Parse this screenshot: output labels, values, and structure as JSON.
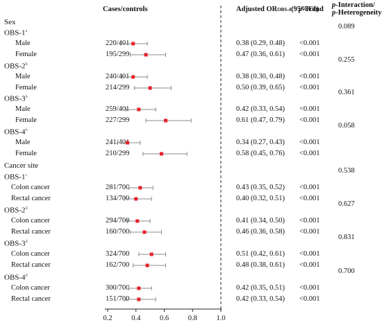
{
  "header": {
    "cases_controls": "Cases/controls",
    "or_prefix": "Adjusted OR",
    "or_sub": "OBS-4",
    "or_suffix": "(95%CI)",
    "p_trend_italic": "p",
    "p_trend_text": "-Trend",
    "p_interaction_line1_italic": "p",
    "p_interaction_line1": "-Interaction/",
    "p_interaction_line2_italic": "p",
    "p_interaction_line2": "-Heterogeneity"
  },
  "sections": [
    {
      "title": "Sex"
    },
    {
      "title": "Cancer site"
    }
  ],
  "chart_data": {
    "type": "forest",
    "xlim": [
      0.2,
      1.0
    ],
    "xticks": [
      0.2,
      0.4,
      0.6,
      0.8,
      1.0
    ],
    "xtick_labels": [
      "0.2",
      "0.4",
      "0.6",
      "0.8",
      "1.0"
    ],
    "reference_line": 1.0,
    "groups": [
      {
        "label": "OBS-1",
        "sup": "a",
        "p_interaction": "0.089",
        "rows": [
          {
            "label": "Male",
            "cases": "220/401",
            "or": 0.38,
            "lo": 0.29,
            "hi": 0.48,
            "or_text": "0.38 (0.29, 0.48)",
            "p_trend": "<0.001"
          },
          {
            "label": "Female",
            "cases": "195/299",
            "or": 0.47,
            "lo": 0.36,
            "hi": 0.61,
            "or_text": "0.47 (0.36, 0.61)",
            "p_trend": "<0.001"
          }
        ]
      },
      {
        "label": "OBS-2",
        "sup": "b",
        "p_interaction": "0.255",
        "rows": [
          {
            "label": "Male",
            "cases": "240/401",
            "or": 0.38,
            "lo": 0.3,
            "hi": 0.48,
            "or_text": "0.38 (0.30, 0.48)",
            "p_trend": "<0.001"
          },
          {
            "label": "Female",
            "cases": "214/299",
            "or": 0.5,
            "lo": 0.39,
            "hi": 0.65,
            "or_text": "0.50 (0.39, 0.65)",
            "p_trend": "<0.001"
          }
        ]
      },
      {
        "label": "OBS-3",
        "sup": "b",
        "p_interaction": "0.361",
        "rows": [
          {
            "label": "Male",
            "cases": "259/401",
            "or": 0.42,
            "lo": 0.33,
            "hi": 0.54,
            "or_text": "0.42 (0.33, 0.54)",
            "p_trend": "<0.001"
          },
          {
            "label": "Female",
            "cases": "227/299",
            "or": 0.61,
            "lo": 0.47,
            "hi": 0.79,
            "or_text": "0.61 (0.47, 0.79)",
            "p_trend": "<0.001"
          }
        ]
      },
      {
        "label": "OBS-4",
        "sup": "b",
        "p_interaction": "0.058",
        "rows": [
          {
            "label": "Male",
            "cases": "241/401",
            "or": 0.34,
            "lo": 0.27,
            "hi": 0.43,
            "or_text": "0.34 (0.27, 0.43)",
            "p_trend": "<0.001"
          },
          {
            "label": "Female",
            "cases": "210/299",
            "or": 0.58,
            "lo": 0.45,
            "hi": 0.76,
            "or_text": "0.58 (0.45, 0.76)",
            "p_trend": "<0.001"
          }
        ]
      },
      {
        "label": "OBS-1",
        "sup": "c",
        "p_interaction": "0.538",
        "rows": [
          {
            "label": "Colon cancer",
            "cases": "281/700",
            "or": 0.43,
            "lo": 0.35,
            "hi": 0.52,
            "or_text": "0.43 (0.35, 0.52)",
            "p_trend": "<0.001"
          },
          {
            "label": "Rectal cancer",
            "cases": "134/700",
            "or": 0.4,
            "lo": 0.32,
            "hi": 0.51,
            "or_text": "0.40 (0.32, 0.51)",
            "p_trend": "<0.001"
          }
        ]
      },
      {
        "label": "OBS-2",
        "sup": "d",
        "p_interaction": "0.627",
        "rows": [
          {
            "label": "Colon cancer",
            "cases": "294/700",
            "or": 0.41,
            "lo": 0.34,
            "hi": 0.5,
            "or_text": "0.41 (0.34, 0.50)",
            "p_trend": "<0.001"
          },
          {
            "label": "Rectal cancer",
            "cases": "160/700",
            "or": 0.46,
            "lo": 0.36,
            "hi": 0.58,
            "or_text": "0.46 (0.36, 0.58)",
            "p_trend": "<0.001"
          }
        ]
      },
      {
        "label": "OBS-3",
        "sup": "d",
        "p_interaction": "0.831",
        "rows": [
          {
            "label": "Colon cancer",
            "cases": "324/700",
            "or": 0.51,
            "lo": 0.42,
            "hi": 0.61,
            "or_text": "0.51 (0.42, 0.61)",
            "p_trend": "<0.001"
          },
          {
            "label": "Rectal cancer",
            "cases": "162/700",
            "or": 0.48,
            "lo": 0.38,
            "hi": 0.61,
            "or_text": "0.48 (0.38, 0.61)",
            "p_trend": "<0.001"
          }
        ]
      },
      {
        "label": "OBS-4",
        "sup": "d",
        "p_interaction": "0.700",
        "rows": [
          {
            "label": "Colon cancer",
            "cases": "300/700",
            "or": 0.42,
            "lo": 0.35,
            "hi": 0.51,
            "or_text": "0.42 (0.35, 0.51)",
            "p_trend": "<0.001"
          },
          {
            "label": "Rectal cancer",
            "cases": "151/700",
            "or": 0.42,
            "lo": 0.33,
            "hi": 0.54,
            "or_text": "0.42 (0.33, 0.54)",
            "p_trend": "<0.001"
          }
        ]
      }
    ],
    "marker_color": "#e8202a",
    "whisker_color": "#8a8a8a",
    "axis_color": "#222222"
  }
}
